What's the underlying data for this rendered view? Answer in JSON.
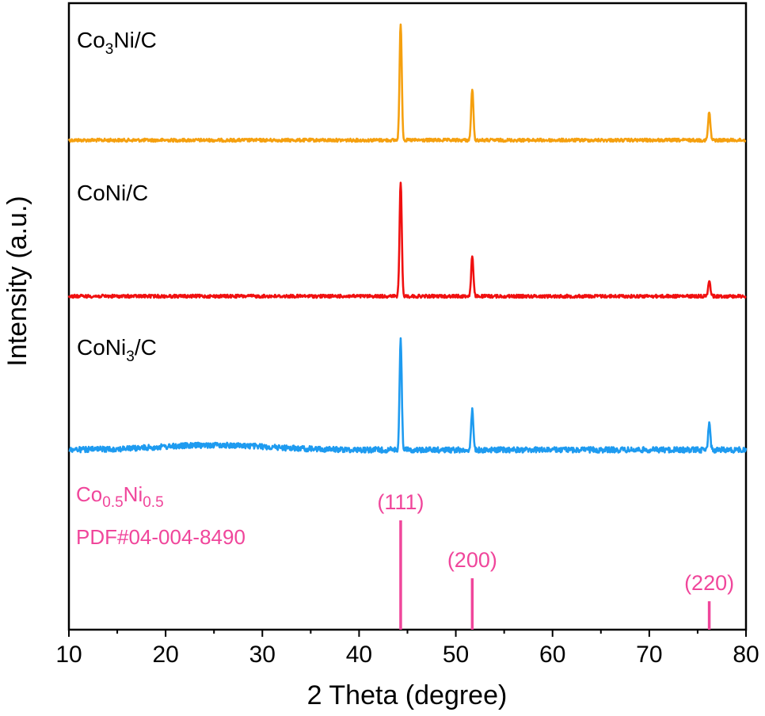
{
  "chart_data": {
    "type": "line",
    "xlabel": "2 Theta (degree)",
    "ylabel": "Intensity (a.u.)",
    "xlim": [
      10,
      80
    ],
    "xticks": [
      "10",
      "20",
      "30",
      "40",
      "50",
      "60",
      "70",
      "80"
    ],
    "series": [
      {
        "name": "Co3Ni/C",
        "label_main1": "Co",
        "label_sub1": "3",
        "label_main2": "Ni/C",
        "color": "#F5A00F",
        "peaks": [
          {
            "x": 44.3,
            "height": 1.0
          },
          {
            "x": 51.7,
            "height": 0.44
          },
          {
            "x": 76.2,
            "height": 0.24
          }
        ]
      },
      {
        "name": "CoNi/C",
        "label_main1": "CoNi/C",
        "label_sub1": "",
        "label_main2": "",
        "color": "#F01010",
        "peaks": [
          {
            "x": 44.3,
            "height": 0.98
          },
          {
            "x": 51.7,
            "height": 0.34
          },
          {
            "x": 76.2,
            "height": 0.14
          }
        ]
      },
      {
        "name": "CoNi3/C",
        "label_main1": "CoNi",
        "label_sub1": "3",
        "label_main2": "/C",
        "color": "#1E9BF0",
        "peaks": [
          {
            "x": 44.3,
            "height": 0.95
          },
          {
            "x": 51.7,
            "height": 0.34
          },
          {
            "x": 76.2,
            "height": 0.22
          }
        ]
      }
    ],
    "reference": {
      "color": "#F0469B",
      "line1_main1": "Co",
      "line1_sub1": "0.5",
      "line1_main2": "Ni",
      "line1_sub2": "0.5",
      "line2": "PDF#04-004-8490",
      "peaks": [
        {
          "x": 44.3,
          "intensity": 100,
          "label": "(111)"
        },
        {
          "x": 51.7,
          "intensity": 47,
          "label": "(200)"
        },
        {
          "x": 76.2,
          "intensity": 26,
          "label": "(220)"
        }
      ]
    }
  }
}
